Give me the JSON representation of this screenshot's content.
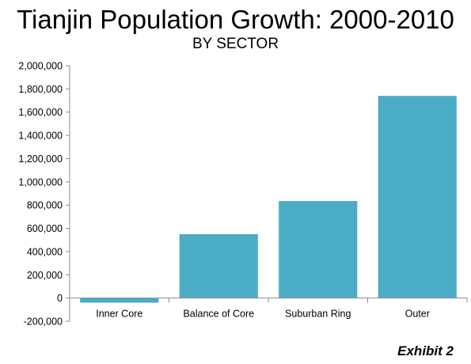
{
  "header": {
    "title": "Tianjin Population Growth: 2000-2010",
    "subtitle": "BY SECTOR"
  },
  "footer": {
    "exhibit": "Exhibit 2"
  },
  "colors": {
    "bar": "#4bacc6",
    "axis": "#8c8c8c"
  },
  "chart_data": {
    "type": "bar",
    "title": "Tianjin Population Growth: 2000-2010",
    "subtitle": "BY SECTOR",
    "xlabel": "",
    "ylabel": "",
    "categories": [
      "Inner Core",
      "Balance of Core",
      "Suburban Ring",
      "Outer"
    ],
    "values": [
      -40000,
      550000,
      835000,
      1740000
    ],
    "ylim": [
      -200000,
      2000000
    ],
    "yticks": [
      -200000,
      0,
      200000,
      400000,
      600000,
      800000,
      1000000,
      1200000,
      1400000,
      1600000,
      1800000,
      2000000
    ],
    "ytick_labels": [
      "-200,000",
      "0",
      "200,000",
      "400,000",
      "600,000",
      "800,000",
      "1,000,000",
      "1,200,000",
      "1,400,000",
      "1,600,000",
      "1,800,000",
      "2,000,000"
    ],
    "grid": false,
    "legend": "none"
  }
}
